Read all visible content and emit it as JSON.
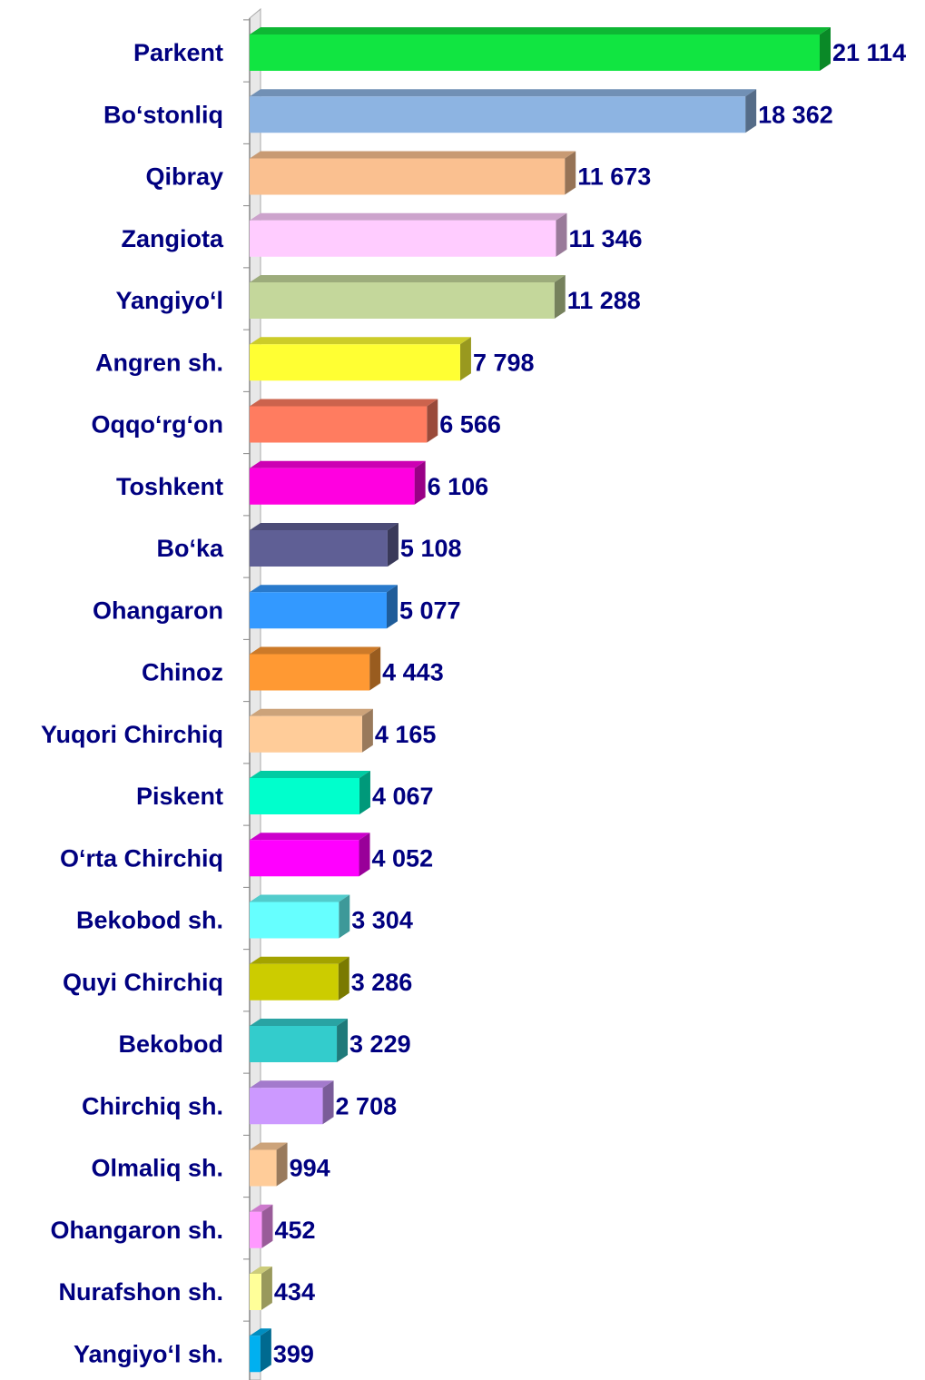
{
  "chart_data": {
    "type": "bar",
    "orientation": "horizontal",
    "categories": [
      "Parkent",
      "Bo‘stonliq",
      "Qibray",
      "Zangiota",
      "Yangiyo‘l",
      "Angren sh.",
      "Oqqo‘rg‘on",
      "Toshkent",
      "Bo‘ka",
      "Ohangaron",
      "Chinoz",
      "Yuqori Chirchiq",
      "Piskent",
      "O‘rta Chirchiq",
      "Bekobod sh.",
      "Quyi Chirchiq",
      "Bekobod",
      "Chirchiq sh.",
      "Olmaliq sh.",
      "Ohangaron sh.",
      "Nurafshon sh.",
      "Yangiyo‘l sh."
    ],
    "values": [
      21114,
      18362,
      11673,
      11346,
      11288,
      7798,
      6566,
      6106,
      5108,
      5077,
      4443,
      4165,
      4067,
      4052,
      3304,
      3286,
      3229,
      2708,
      994,
      452,
      434,
      399
    ],
    "value_labels": [
      "21 114",
      "18 362",
      "11 673",
      "11 346",
      "11 288",
      "7 798",
      "6 566",
      "6 106",
      "5 108",
      "5 077",
      "4 443",
      "4 165",
      "4 067",
      "4 052",
      "3 304",
      "3 286",
      "3 229",
      "2 708",
      "994",
      "452",
      "434",
      "399"
    ],
    "colors": [
      "#11e541",
      "#8db4e2",
      "#fac090",
      "#ffccff",
      "#c4d79b",
      "#ffff33",
      "#ff7c60",
      "#ff00e0",
      "#5f5f95",
      "#3399ff",
      "#ff9933",
      "#ffcc99",
      "#00ffcc",
      "#ff00ff",
      "#66ffff",
      "#cccc00",
      "#33cccc",
      "#cc99ff",
      "#ffcc99",
      "#ff99ff",
      "#ffff99",
      "#00b0f0"
    ]
  }
}
